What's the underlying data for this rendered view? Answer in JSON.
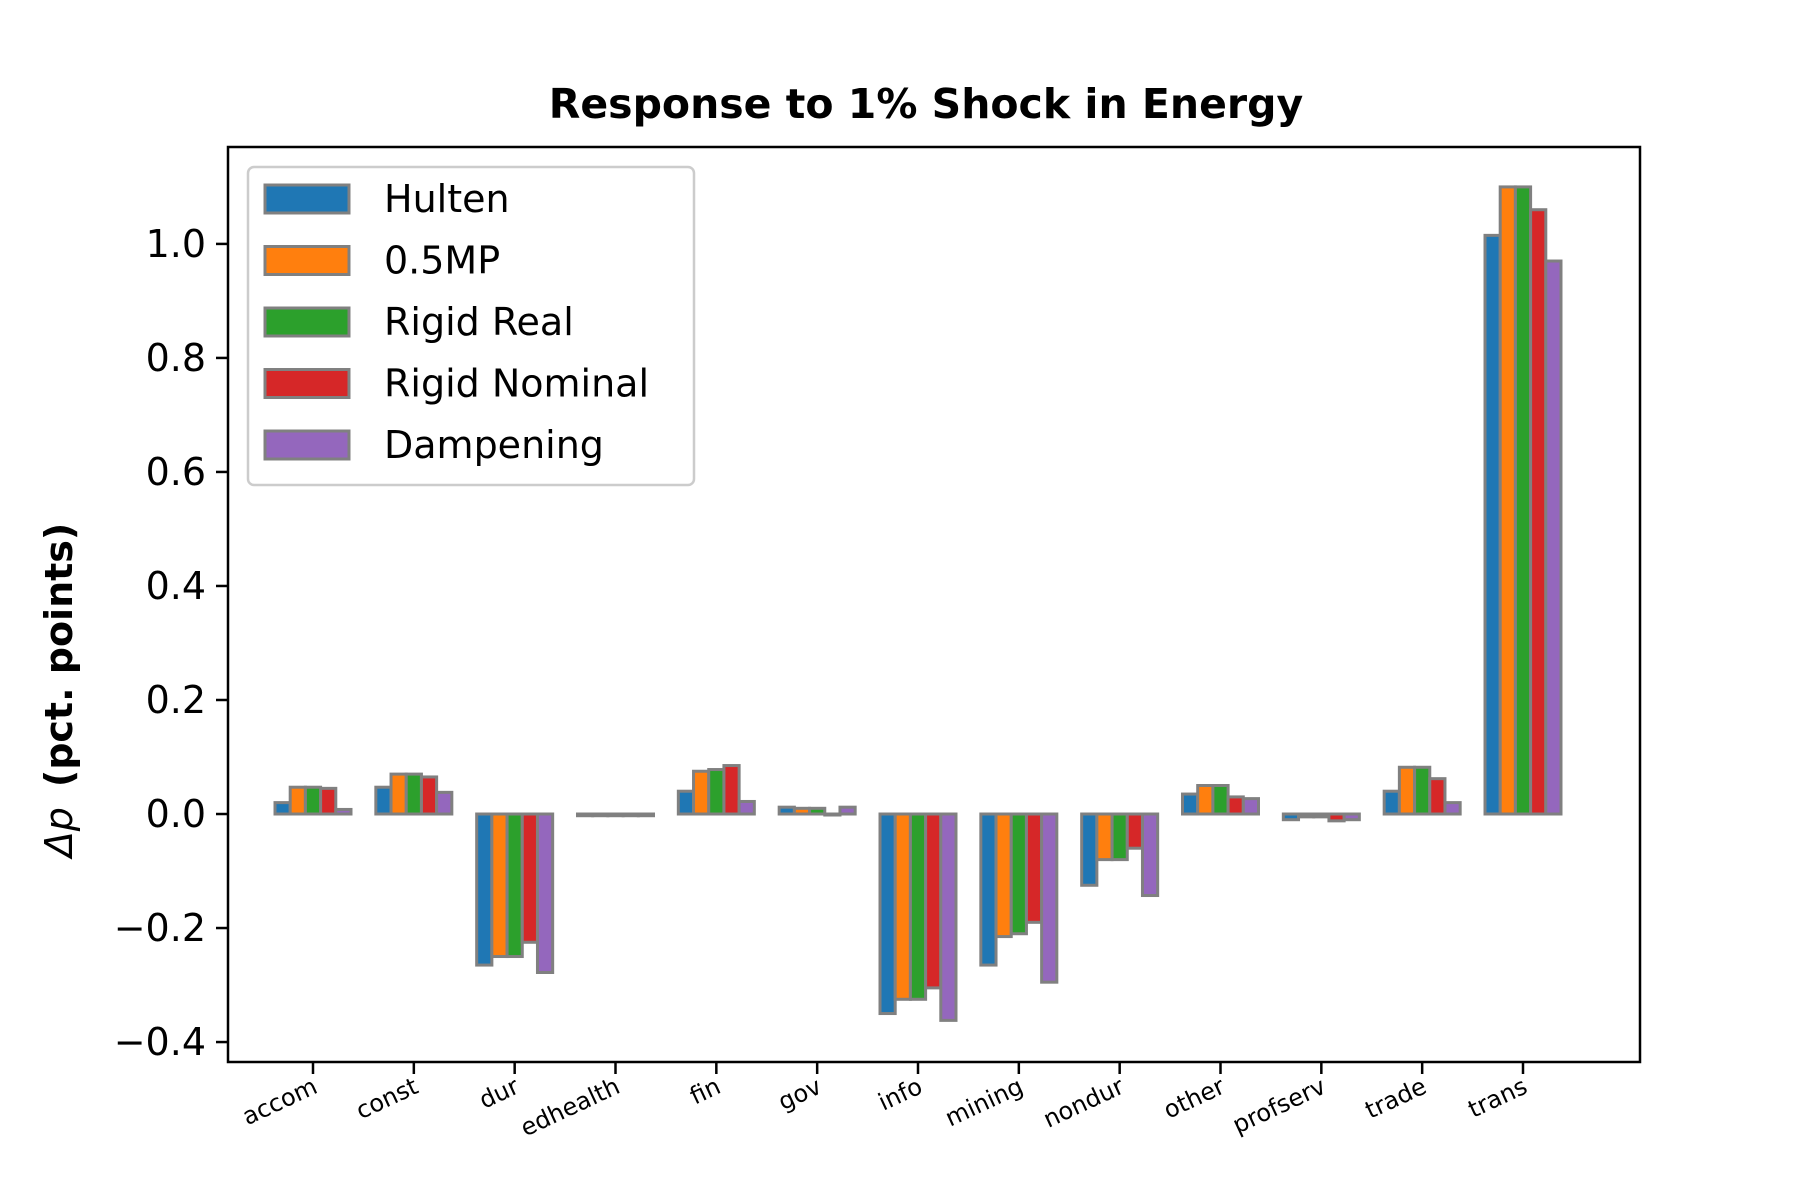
{
  "chart_data": {
    "type": "bar",
    "title": "Response to 1% Shock in Energy",
    "ylabel_symbol": "Δp",
    "ylabel_text": "(pct. points)",
    "xlabel": "",
    "categories": [
      "accom",
      "const",
      "dur",
      "edhealth",
      "fin",
      "gov",
      "info",
      "mining",
      "nondur",
      "other",
      "profserv",
      "trade",
      "trans"
    ],
    "ylim": [
      -0.435,
      1.17
    ],
    "yticks": [
      -0.4,
      -0.2,
      0.0,
      0.2,
      0.4,
      0.6,
      0.8,
      1.0
    ],
    "ytick_labels": [
      "−0.4",
      "−0.2",
      "0.0",
      "0.2",
      "0.4",
      "0.6",
      "0.8",
      "1.0"
    ],
    "grid": false,
    "legend_position": "top-left",
    "bar_edge_color": "#808080",
    "series": [
      {
        "name": "Hulten",
        "color": "#1f77b4",
        "values": [
          0.02,
          0.047,
          -0.265,
          -0.003,
          0.04,
          0.012,
          -0.35,
          -0.265,
          -0.125,
          0.035,
          -0.01,
          0.04,
          1.015
        ]
      },
      {
        "name": "0.5MP",
        "color": "#ff7f0e",
        "values": [
          0.047,
          0.07,
          -0.25,
          -0.003,
          0.075,
          0.01,
          -0.325,
          -0.215,
          -0.08,
          0.05,
          -0.005,
          0.082,
          1.1
        ]
      },
      {
        "name": "Rigid Real",
        "color": "#2ca02c",
        "values": [
          0.047,
          0.07,
          -0.25,
          -0.003,
          0.078,
          0.01,
          -0.325,
          -0.21,
          -0.08,
          0.05,
          -0.005,
          0.082,
          1.1
        ]
      },
      {
        "name": "Rigid Nominal",
        "color": "#d62728",
        "values": [
          0.045,
          0.065,
          -0.225,
          -0.003,
          0.085,
          0.0,
          -0.305,
          -0.19,
          -0.06,
          0.03,
          -0.012,
          0.062,
          1.06
        ]
      },
      {
        "name": "Dampening",
        "color": "#9467bd",
        "values": [
          0.008,
          0.038,
          -0.278,
          -0.003,
          0.022,
          0.012,
          -0.362,
          -0.295,
          -0.143,
          0.027,
          -0.01,
          0.02,
          0.97
        ]
      }
    ]
  }
}
